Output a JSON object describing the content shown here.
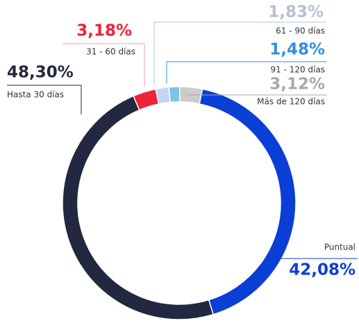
{
  "chart_data": {
    "type": "pie",
    "categories": [
      "Puntual",
      "Hasta 30 días",
      "31 - 60 días",
      "61 - 90 días",
      "91 - 120 días",
      "Más de 120 días"
    ],
    "values": [
      42.08,
      48.3,
      3.18,
      1.83,
      1.48,
      3.12
    ],
    "value_labels": [
      "42,08%",
      "48,30%",
      "3,18%",
      "1,83%",
      "1,48%",
      "3,12%"
    ],
    "colors": [
      "#0a3fd6",
      "#22283f",
      "#f0213a",
      "#c9d3f5",
      "#7ec3ea",
      "#cccccc"
    ]
  }
}
